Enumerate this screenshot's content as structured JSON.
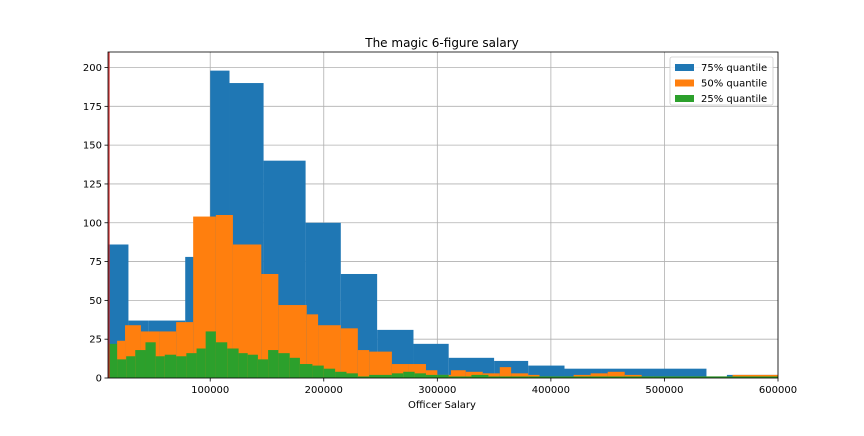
{
  "chart_data": {
    "type": "bar",
    "title": "The magic 6-figure salary",
    "xlabel": "Officer Salary",
    "ylabel": "",
    "xlim": [
      10000,
      600000
    ],
    "ylim": [
      0,
      210
    ],
    "xticks": [
      100000,
      200000,
      300000,
      400000,
      500000,
      600000
    ],
    "yticks": [
      0,
      25,
      50,
      75,
      100,
      125,
      150,
      175,
      200
    ],
    "grid": true,
    "legend_position": "top-right",
    "colors": {
      "q75": "#1f77b4",
      "q50": "#ff7f0e",
      "q25": "#2ca02c",
      "grid": "#b0b0b0",
      "axes": "#000000",
      "vline": "#d62728"
    },
    "series": [
      {
        "name": "75% quantile",
        "color": "#1f77b4",
        "bin_edges": [
          10000,
          28000,
          46000,
          78000,
          100000,
          117000,
          147000,
          184000,
          215000,
          247000,
          279000,
          310000,
          350000,
          380000,
          412000,
          445000,
          537000,
          555000,
          600000
        ],
        "counts": [
          86,
          37,
          37,
          78,
          198,
          190,
          140,
          100,
          67,
          31,
          22,
          13,
          11,
          8,
          6,
          6,
          1,
          2
        ]
      },
      {
        "name": "50% quantile",
        "color": "#ff7f0e",
        "bin_edges": [
          10000,
          18000,
          25000,
          39000,
          55000,
          70000,
          85000,
          105000,
          120000,
          145000,
          160000,
          185000,
          195000,
          215000,
          230000,
          240000,
          260000,
          275000,
          290000,
          300000,
          312000,
          325000,
          340000,
          355000,
          365000,
          380000,
          390000,
          420000,
          435000,
          450000,
          465000,
          480000,
          500000,
          540000,
          560000,
          600000
        ],
        "counts": [
          18,
          24,
          34,
          30,
          30,
          36,
          104,
          105,
          86,
          67,
          47,
          41,
          34,
          32,
          18,
          17,
          9,
          9,
          5,
          2,
          5,
          4,
          3,
          7,
          3,
          2,
          1,
          2,
          3,
          4,
          2,
          1,
          1,
          1,
          2
        ]
      },
      {
        "name": "25% quantile",
        "color": "#2ca02c",
        "bin_edges": [
          10000,
          18000,
          26000,
          34000,
          43000,
          52000,
          60000,
          70000,
          79000,
          88000,
          96000,
          105000,
          115000,
          125000,
          133000,
          142000,
          151000,
          160000,
          170000,
          179000,
          190000,
          200000,
          210000,
          220000,
          230000,
          240000,
          260000,
          270000,
          280000,
          290000,
          300000,
          310000,
          320000,
          330000,
          345000,
          360000,
          380000,
          400000,
          430000,
          460000,
          490000,
          530000,
          600000
        ],
        "counts": [
          22,
          12,
          14,
          18,
          23,
          14,
          15,
          14,
          16,
          19,
          30,
          23,
          19,
          16,
          15,
          12,
          18,
          16,
          13,
          9,
          8,
          6,
          4,
          3,
          1,
          2,
          3,
          4,
          3,
          2,
          2,
          1,
          1,
          2,
          1,
          1,
          1,
          1,
          1,
          1,
          1,
          1
        ]
      }
    ]
  }
}
